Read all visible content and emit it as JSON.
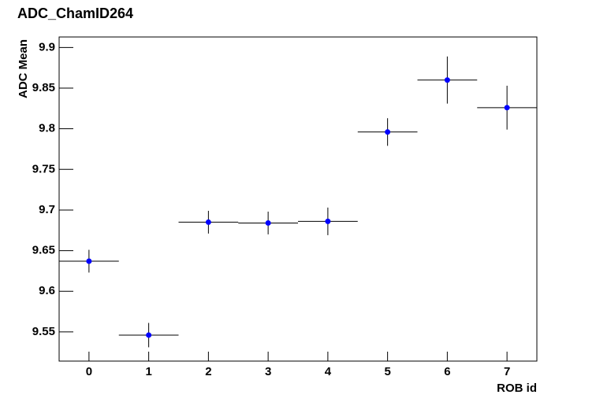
{
  "chart_data": {
    "type": "scatter",
    "title": "ADC_ChamID264",
    "x_label": "ROB id",
    "y_label": "ADC Mean",
    "x": [
      0,
      1,
      2,
      3,
      4,
      5,
      6,
      7
    ],
    "values": [
      9.637,
      9.546,
      9.685,
      9.684,
      9.686,
      9.796,
      9.86,
      9.826
    ],
    "errors": [
      0.014,
      0.015,
      0.014,
      0.014,
      0.017,
      0.017,
      0.029,
      0.027
    ],
    "xerrors": [
      0.5,
      0.5,
      0.5,
      0.5,
      0.5,
      0.5,
      0.5,
      0.5
    ],
    "color": "#0000ff",
    "xlim": [
      -0.5,
      7.5
    ],
    "xticks": [
      0,
      1,
      2,
      3,
      4,
      5,
      6,
      7
    ],
    "ylim": [
      9.514,
      9.913
    ],
    "yticks": [
      9.55,
      9.6,
      9.65,
      9.7,
      9.75,
      9.8,
      9.85,
      9.9
    ],
    "grid": false
  }
}
